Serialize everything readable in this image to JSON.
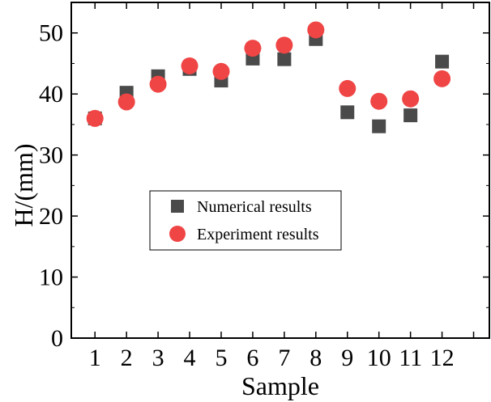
{
  "chart_data": {
    "type": "scatter",
    "xlabel": "Sample",
    "ylabel": "H/(mm)",
    "x": [
      1,
      2,
      3,
      4,
      5,
      6,
      7,
      8,
      9,
      10,
      11,
      12
    ],
    "x_tick_labels": [
      "1",
      "2",
      "3",
      "4",
      "5",
      "6",
      "7",
      "8",
      "9",
      "10",
      "11",
      "12"
    ],
    "xlim": [
      0.25,
      13.5
    ],
    "ylim": [
      0,
      55
    ],
    "y_ticks": [
      0,
      10,
      20,
      30,
      40,
      50
    ],
    "y_tick_labels": [
      "0",
      "10",
      "20",
      "30",
      "40",
      "50"
    ],
    "legend_position": "center-left",
    "series": [
      {
        "name": "Numerical results",
        "marker": "square",
        "color": "#4a4a4a",
        "values": [
          36.0,
          40.2,
          42.9,
          44.1,
          42.2,
          45.8,
          45.7,
          49.0,
          37.0,
          34.7,
          36.5,
          45.3
        ]
      },
      {
        "name": "Experiment results",
        "marker": "circle",
        "color": "#ef4545",
        "values": [
          36.0,
          38.7,
          41.6,
          44.6,
          43.7,
          47.5,
          48.0,
          50.5,
          40.9,
          38.8,
          39.2,
          42.5
        ]
      }
    ]
  }
}
